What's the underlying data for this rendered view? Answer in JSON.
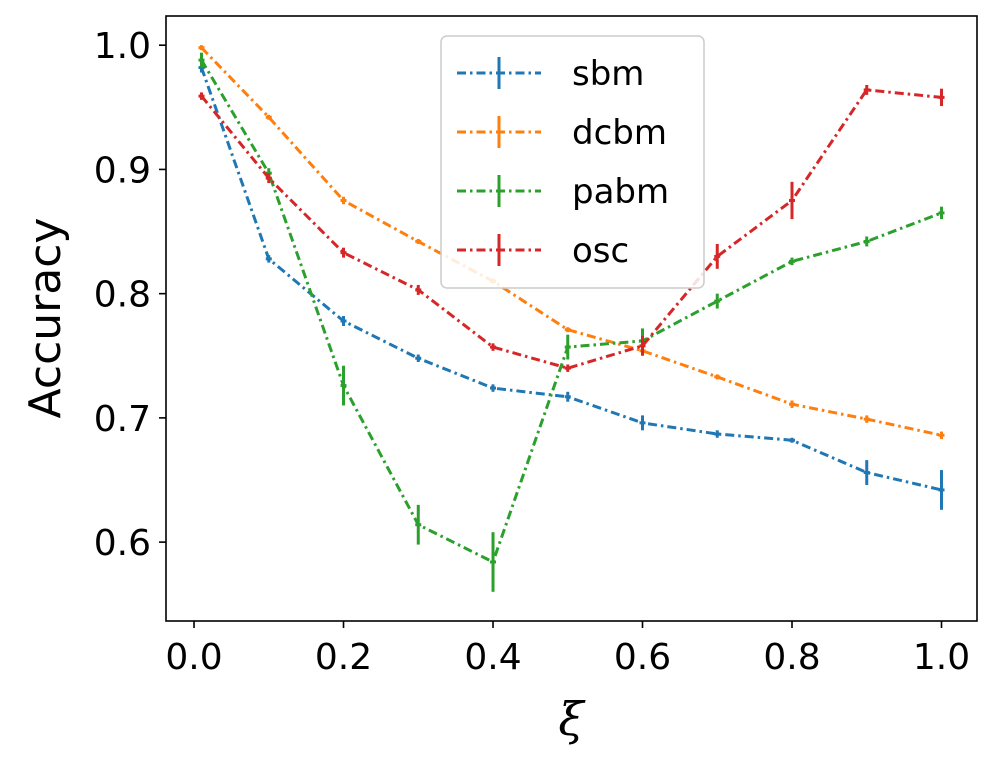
{
  "chart_data": {
    "type": "line",
    "title": "",
    "xlabel": "ξ",
    "ylabel": "Accuracy",
    "xlim": [
      -0.0375,
      1.0475
    ],
    "ylim": [
      0.5365,
      1.0235
    ],
    "xticks": [
      0.0,
      0.2,
      0.4,
      0.6,
      0.8,
      1.0
    ],
    "xtick_labels": [
      "0.0",
      "0.2",
      "0.4",
      "0.6",
      "0.8",
      "1.0"
    ],
    "yticks": [
      0.6,
      0.7,
      0.8,
      0.9,
      1.0
    ],
    "ytick_labels": [
      "0.6",
      "0.7",
      "0.8",
      "0.9",
      "1.0"
    ],
    "grid": false,
    "legend_position": "upper-center",
    "x": [
      0.01,
      0.1,
      0.2,
      0.3,
      0.4,
      0.5,
      0.6,
      0.7,
      0.8,
      0.9,
      1.0
    ],
    "series": [
      {
        "name": "sbm",
        "color": "#1f77b4",
        "values": [
          0.982,
          0.828,
          0.778,
          0.748,
          0.724,
          0.717,
          0.696,
          0.687,
          0.682,
          0.656,
          0.642
        ],
        "errors": [
          0.004,
          0.003,
          0.004,
          0.003,
          0.003,
          0.004,
          0.006,
          0.003,
          0.002,
          0.01,
          0.016
        ]
      },
      {
        "name": "dcbm",
        "color": "#ff7f0e",
        "values": [
          0.998,
          0.942,
          0.875,
          0.842,
          0.81,
          0.771,
          0.754,
          0.733,
          0.711,
          0.699,
          0.686
        ],
        "errors": [
          0.002,
          0.002,
          0.003,
          0.002,
          0.002,
          0.002,
          0.003,
          0.002,
          0.003,
          0.003,
          0.003
        ]
      },
      {
        "name": "pabm",
        "color": "#2ca02c",
        "values": [
          0.988,
          0.897,
          0.726,
          0.614,
          0.584,
          0.757,
          0.762,
          0.794,
          0.826,
          0.842,
          0.865
        ],
        "errors": [
          0.006,
          0.004,
          0.016,
          0.016,
          0.024,
          0.01,
          0.01,
          0.006,
          0.003,
          0.004,
          0.005
        ]
      },
      {
        "name": "osc",
        "color": "#d62728",
        "values": [
          0.959,
          0.893,
          0.833,
          0.803,
          0.757,
          0.74,
          0.758,
          0.83,
          0.875,
          0.964,
          0.958
        ],
        "errors": [
          0.003,
          0.004,
          0.004,
          0.004,
          0.003,
          0.003,
          0.008,
          0.01,
          0.015,
          0.004,
          0.007
        ]
      }
    ]
  }
}
